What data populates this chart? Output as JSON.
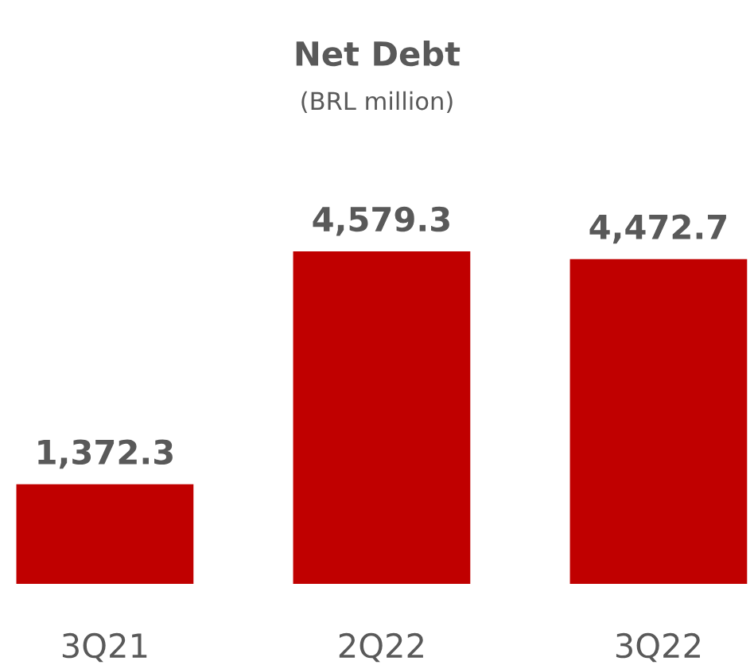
{
  "chart_data": {
    "type": "bar",
    "title": "Net Debt",
    "subtitle": "(BRL million)",
    "categories": [
      "3Q21",
      "2Q22",
      "3Q22"
    ],
    "values": [
      1372.3,
      4579.3,
      4472.7
    ],
    "value_labels": [
      "1,372.3",
      "4,579.3",
      "4,472.7"
    ],
    "color": "#c00000",
    "grid": false,
    "legend": false
  }
}
